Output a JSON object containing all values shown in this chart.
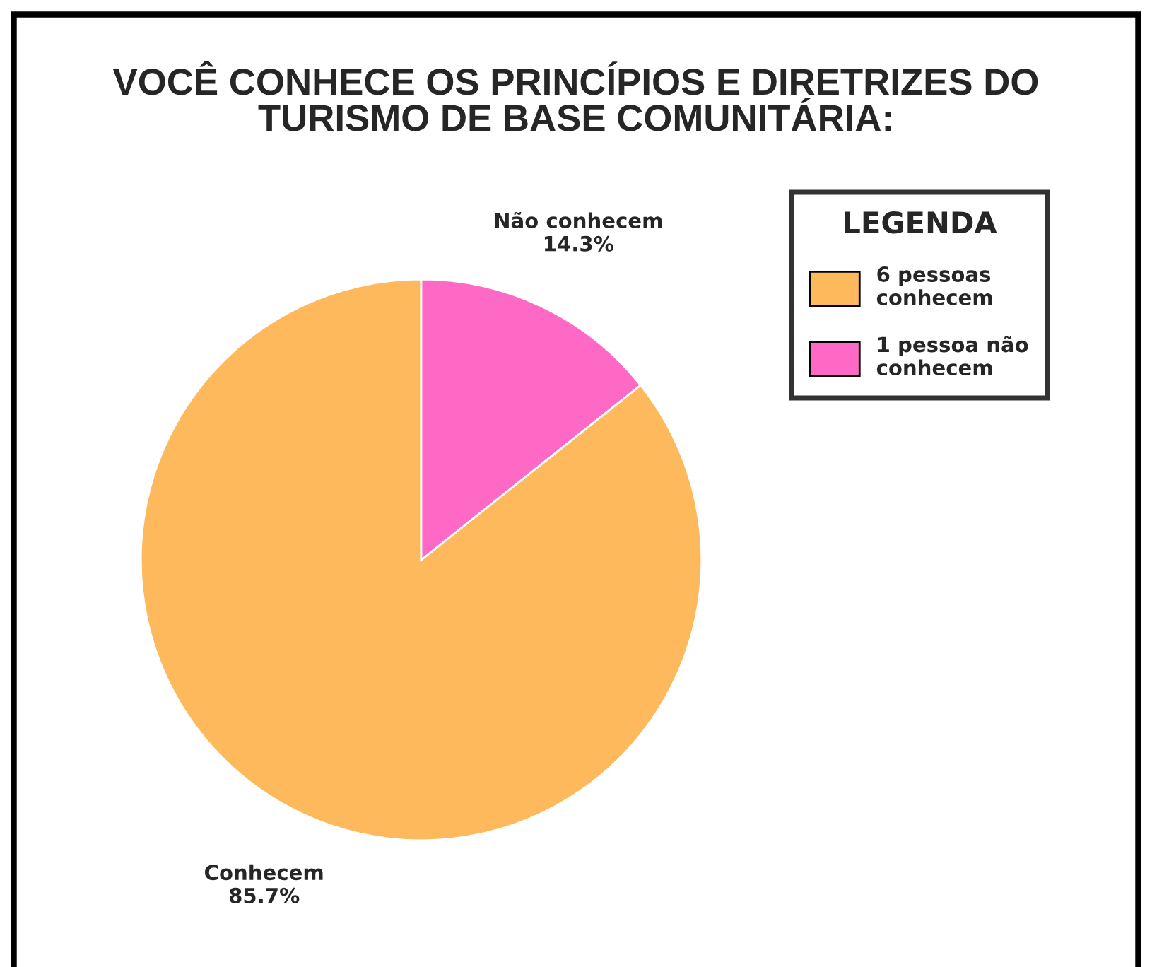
{
  "chart_data": {
    "type": "pie",
    "title": "VOCÊ CONHECE OS PRINCÍPIOS E DIRETRIZES DO\nTURISMO DE BASE COMUNITÁRIA:",
    "categories": [
      "6 pessoas\nconhecem",
      "1 pessoa não\nconhecem"
    ],
    "values": [
      85.7,
      14.3
    ],
    "value_labels": [
      "Conhecem\n85.7%",
      "Não conhecem\n14.3%"
    ],
    "colors": [
      "#fdb95c",
      "#ff69c6"
    ],
    "legend_title": "LEGENDA",
    "legend": "top right"
  }
}
